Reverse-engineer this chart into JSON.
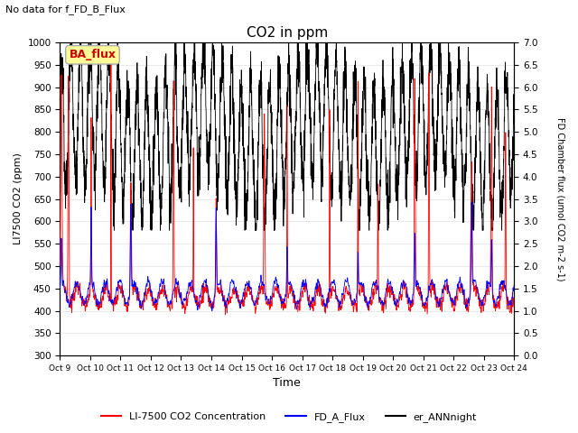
{
  "title": "CO2 in ppm",
  "subtitle": "No data for f_FD_B_Flux",
  "xlabel": "Time",
  "ylabel_left": "LI7500 CO2 (ppm)",
  "ylabel_right": "FD Chamber flux (umol CO2 m-2 s-1)",
  "ylim_left": [
    300,
    1000
  ],
  "ylim_right": [
    0.0,
    7.0
  ],
  "yticks_left": [
    300,
    350,
    400,
    450,
    500,
    550,
    600,
    650,
    700,
    750,
    800,
    850,
    900,
    950,
    1000
  ],
  "yticks_right": [
    0.0,
    0.5,
    1.0,
    1.5,
    2.0,
    2.5,
    3.0,
    3.5,
    4.0,
    4.5,
    5.0,
    5.5,
    6.0,
    6.5,
    7.0
  ],
  "xtick_labels": [
    "Oct 9",
    "Oct 10",
    "Oct 11",
    "Oct 12",
    "Oct 13",
    "Oct 14",
    "Oct 15",
    "Oct 16",
    "Oct 17",
    "Oct 18",
    "Oct 19",
    "Oct 20",
    "Oct 21",
    "Oct 22",
    "Oct 23",
    "Oct 24"
  ],
  "color_red": "#ff0000",
  "color_blue": "#0000ff",
  "color_black": "#000000",
  "legend_box_color": "#ffff99",
  "legend_box_text": "BA_flux",
  "legend_box_text_color": "#cc0000",
  "background_color": "#ffffff",
  "grid_color": "#e0e0e0",
  "n_points": 3000,
  "seed": 42
}
